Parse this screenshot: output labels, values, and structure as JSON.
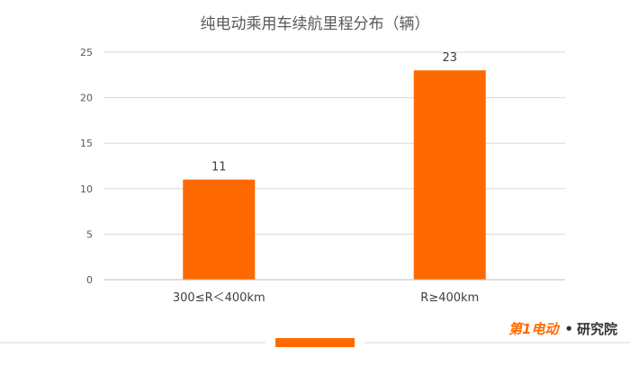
{
  "chart_data": {
    "type": "bar",
    "title": "纯电动乘用车续航里程分布（辆）",
    "categories": [
      "300≤R＜400km",
      "R≥400km"
    ],
    "values": [
      11,
      23
    ],
    "ylim": [
      0,
      25
    ],
    "yticks": [
      0,
      5,
      10,
      15,
      20,
      25
    ],
    "grid": true,
    "bar_color": "#ff6a00",
    "data_labels": true,
    "legend_placement": "bottom-center"
  },
  "branding": {
    "logo_text": "第1电动",
    "suffix": "研究院",
    "accent": "#ff6a00"
  }
}
